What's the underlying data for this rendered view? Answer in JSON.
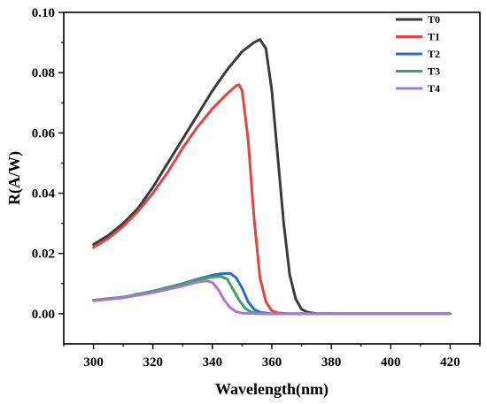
{
  "chart_data": {
    "type": "line",
    "title": "",
    "xlabel": "Wavelength(nm)",
    "ylabel": "R(A/W)",
    "xlim": [
      290,
      430
    ],
    "ylim": [
      -0.01,
      0.1
    ],
    "xticks": [
      300,
      320,
      340,
      360,
      380,
      400,
      420
    ],
    "xtick_labels": [
      "300",
      "320",
      "340",
      "360",
      "380",
      "400",
      "420"
    ],
    "yticks": [
      0.0,
      0.02,
      0.04,
      0.06,
      0.08,
      0.1
    ],
    "ytick_labels": [
      "0.00",
      "0.02",
      "0.04",
      "0.06",
      "0.08",
      "0.10"
    ],
    "grid": false,
    "legend_position": "top-right",
    "series": [
      {
        "name": "T0",
        "color": "#3b3b3b",
        "x": [
          300,
          305,
          310,
          315,
          320,
          325,
          330,
          335,
          340,
          345,
          350,
          354,
          356,
          358,
          360,
          362,
          364,
          366,
          368,
          370,
          372,
          375,
          380,
          390,
          400,
          410,
          420
        ],
        "y": [
          0.023,
          0.026,
          0.03,
          0.035,
          0.042,
          0.05,
          0.058,
          0.066,
          0.074,
          0.081,
          0.087,
          0.09,
          0.091,
          0.088,
          0.074,
          0.052,
          0.03,
          0.013,
          0.005,
          0.0015,
          0.0005,
          0.0001,
          0,
          0,
          0,
          0,
          0
        ]
      },
      {
        "name": "T1",
        "color": "#e04444",
        "x": [
          300,
          305,
          310,
          315,
          320,
          325,
          330,
          335,
          340,
          345,
          348,
          349,
          350,
          352,
          354,
          356,
          358,
          360,
          362,
          365,
          370,
          380,
          390,
          400,
          410,
          420
        ],
        "y": [
          0.022,
          0.025,
          0.029,
          0.034,
          0.04,
          0.047,
          0.055,
          0.062,
          0.068,
          0.073,
          0.0757,
          0.076,
          0.074,
          0.058,
          0.032,
          0.012,
          0.004,
          0.001,
          0.0003,
          0,
          0,
          0,
          0,
          0,
          0,
          0
        ]
      },
      {
        "name": "T2",
        "color": "#2a6fc2",
        "x": [
          300,
          310,
          320,
          330,
          335,
          340,
          343,
          346,
          348,
          350,
          352,
          354,
          356,
          360,
          370,
          380,
          390,
          400,
          410,
          420
        ],
        "y": [
          0.0045,
          0.0055,
          0.0075,
          0.01,
          0.0115,
          0.0128,
          0.0133,
          0.0134,
          0.012,
          0.0085,
          0.004,
          0.0015,
          0.0005,
          0,
          0,
          0,
          0,
          0,
          0,
          0
        ]
      },
      {
        "name": "T3",
        "color": "#3ea360",
        "x": [
          300,
          310,
          320,
          330,
          335,
          340,
          343,
          345,
          347,
          349,
          351,
          353,
          356,
          360,
          370,
          380,
          390,
          400,
          410,
          420
        ],
        "y": [
          0.0045,
          0.0055,
          0.0075,
          0.0098,
          0.0112,
          0.0122,
          0.0124,
          0.0115,
          0.008,
          0.0045,
          0.0018,
          0.0006,
          0.0001,
          0,
          0,
          0,
          0,
          0,
          0,
          0
        ]
      },
      {
        "name": "T4",
        "color": "#a678d6",
        "x": [
          300,
          310,
          320,
          330,
          335,
          338,
          340,
          342,
          344,
          346,
          348,
          350,
          355,
          360,
          370,
          380,
          390,
          400,
          410,
          420
        ],
        "y": [
          0.0043,
          0.0053,
          0.007,
          0.0092,
          0.0105,
          0.0109,
          0.0104,
          0.008,
          0.0045,
          0.002,
          0.0007,
          0.0002,
          0,
          0,
          0,
          0,
          0,
          0,
          0,
          0
        ]
      }
    ]
  }
}
